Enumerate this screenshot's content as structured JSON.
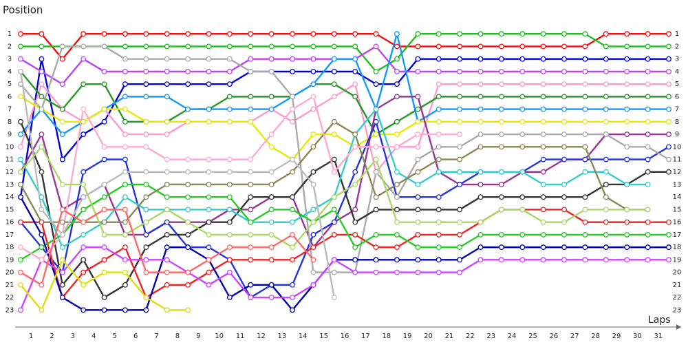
{
  "chart_data": {
    "type": "lap",
    "y_label": "Position",
    "x_label": "Laps",
    "x": [
      0,
      1,
      2,
      3,
      4,
      5,
      6,
      7,
      8,
      9,
      10,
      11,
      12,
      13,
      14,
      15,
      16,
      17,
      18,
      19,
      20,
      21,
      22,
      23,
      24,
      25,
      26,
      27,
      28,
      29,
      30,
      31
    ],
    "xlim": [
      0,
      31
    ],
    "ylim": [
      0,
      24
    ],
    "y_reversed": true,
    "yticks": [
      1,
      2,
      3,
      4,
      5,
      6,
      7,
      8,
      9,
      10,
      11,
      12,
      13,
      14,
      15,
      16,
      17,
      18,
      19,
      20,
      21,
      22,
      23
    ],
    "x_labels": [
      1,
      2,
      3,
      4,
      5,
      6,
      7,
      8,
      9,
      10,
      11,
      12,
      13,
      14,
      15,
      16,
      17,
      18,
      19,
      20,
      21,
      22,
      23,
      24,
      25,
      26,
      27,
      28,
      29,
      30,
      31
    ],
    "series": [
      {
        "color": "#ee1111",
        "values": [
          1,
          1,
          3,
          1,
          1,
          1,
          1,
          1,
          1,
          1,
          1,
          1,
          1,
          1,
          1,
          1,
          1,
          1,
          2,
          2,
          2,
          2,
          2,
          2,
          2,
          2,
          2,
          2,
          1,
          1,
          1,
          1
        ]
      },
      {
        "color": "#22bb22",
        "values": [
          2,
          2,
          2,
          2,
          2,
          2,
          2,
          2,
          2,
          2,
          2,
          2,
          2,
          2,
          2,
          2,
          2,
          4,
          3,
          1,
          1,
          1,
          1,
          1,
          1,
          1,
          1,
          1,
          2,
          2,
          2,
          2
        ]
      },
      {
        "color": "#0000dd",
        "values": [
          14,
          3,
          11,
          9,
          8,
          5,
          5,
          5,
          5,
          5,
          5,
          4,
          4,
          4,
          4,
          4,
          4,
          5,
          5,
          3,
          3,
          3,
          3,
          3,
          3,
          3,
          3,
          3,
          3,
          3,
          3,
          3
        ]
      },
      {
        "color": "#bb44ee",
        "values": [
          3,
          4,
          5,
          3,
          4,
          4,
          4,
          4,
          4,
          4,
          4,
          3,
          3,
          3,
          3,
          3,
          3,
          2,
          4,
          4,
          4,
          4,
          4,
          4,
          4,
          4,
          4,
          4,
          4,
          4,
          4,
          4
        ]
      },
      {
        "color": "#ff99cc",
        "values": [
          10,
          5,
          7,
          8,
          7,
          9,
          9,
          9,
          8,
          8,
          8,
          8,
          7,
          8,
          7,
          6,
          5,
          12,
          10,
          10,
          5,
          5,
          5,
          5,
          5,
          5,
          5,
          5,
          5,
          5,
          5,
          5
        ]
      },
      {
        "color": "#229922",
        "values": [
          4,
          6,
          7,
          5,
          5,
          8,
          8,
          8,
          7,
          7,
          6,
          6,
          6,
          6,
          5,
          5,
          6,
          9,
          8,
          7,
          6,
          6,
          6,
          6,
          6,
          6,
          6,
          6,
          6,
          6,
          6,
          6
        ]
      },
      {
        "color": "#1199ff",
        "values": [
          9,
          7,
          9,
          8,
          7,
          6,
          6,
          6,
          7,
          7,
          7,
          7,
          7,
          6,
          5,
          3,
          3,
          7,
          1,
          8,
          7,
          7,
          7,
          7,
          7,
          7,
          7,
          7,
          7,
          7,
          7,
          7
        ]
      },
      {
        "color": "#e8e800",
        "values": [
          6,
          7,
          8,
          8,
          7,
          7,
          8,
          8,
          8,
          8,
          8,
          8,
          10,
          11,
          9,
          9,
          10,
          9,
          9,
          8,
          8,
          8,
          8,
          8,
          8,
          8,
          8,
          8,
          8,
          8,
          8,
          8
        ]
      },
      {
        "color": "#993399",
        "values": [
          12,
          9,
          15,
          14,
          13,
          17,
          17,
          16,
          16,
          16,
          15,
          15,
          14,
          14,
          18,
          16,
          15,
          7,
          6,
          6,
          12,
          13,
          13,
          13,
          12,
          12,
          11,
          11,
          9,
          9,
          9,
          9
        ]
      },
      {
        "color": "#2233dd",
        "values": [
          16,
          18,
          20,
          12,
          11,
          11,
          17,
          16,
          18,
          18,
          19,
          22,
          21,
          21,
          17,
          16,
          12,
          8,
          14,
          14,
          14,
          13,
          12,
          12,
          12,
          11,
          11,
          11,
          11,
          11,
          11,
          10
        ]
      },
      {
        "color": "#aaaaaa",
        "values": [
          5,
          7,
          2,
          2,
          2,
          3,
          3,
          3,
          3,
          3,
          3,
          4,
          4,
          6,
          20,
          20,
          20,
          12,
          14,
          11,
          10,
          10,
          9,
          9,
          9,
          9,
          9,
          9,
          9,
          10,
          10,
          11
        ]
      },
      {
        "color": "#333333",
        "values": [
          8,
          12,
          21,
          19,
          22,
          21,
          18,
          17,
          17,
          16,
          16,
          14,
          14,
          14,
          12,
          11,
          16,
          15,
          15,
          15,
          15,
          15,
          14,
          14,
          14,
          14,
          14,
          14,
          13,
          13,
          12,
          12
        ]
      },
      {
        "color": "#33cccc",
        "values": [
          11,
          14,
          18,
          17,
          16,
          14,
          15,
          15,
          15,
          15,
          15,
          16,
          16,
          16,
          15,
          14,
          9,
          7,
          12,
          13,
          12,
          12,
          12,
          12,
          12,
          13,
          13,
          12,
          12,
          13,
          13,
          null
        ]
      },
      {
        "color": "#888855",
        "values": [
          13,
          16,
          16,
          16,
          16,
          16,
          14,
          13,
          13,
          13,
          13,
          13,
          13,
          12,
          10,
          8,
          9,
          14,
          13,
          12,
          11,
          11,
          10,
          10,
          10,
          10,
          10,
          10,
          14,
          15,
          15,
          null
        ]
      },
      {
        "color": "#ee2222",
        "values": [
          16,
          16,
          22,
          20,
          19,
          18,
          22,
          21,
          21,
          20,
          19,
          19,
          19,
          19,
          18,
          17,
          17,
          18,
          18,
          17,
          17,
          17,
          16,
          15,
          15,
          15,
          15,
          16,
          16,
          16,
          16,
          16
        ]
      },
      {
        "color": "#22cc22",
        "values": [
          19,
          18,
          17,
          15,
          14,
          13,
          13,
          14,
          14,
          14,
          14,
          16,
          15,
          15,
          16,
          15,
          18,
          17,
          17,
          18,
          18,
          18,
          17,
          17,
          17,
          17,
          17,
          17,
          17,
          17,
          17,
          17
        ]
      },
      {
        "color": "#0000aa",
        "values": [
          14,
          17,
          22,
          23,
          23,
          23,
          23,
          18,
          18,
          19,
          22,
          21,
          21,
          23,
          21,
          19,
          19,
          19,
          19,
          19,
          19,
          19,
          18,
          18,
          18,
          18,
          18,
          18,
          18,
          18,
          18,
          18
        ]
      },
      {
        "color": "#cc44ff",
        "values": [
          23,
          19,
          20,
          18,
          18,
          19,
          19,
          19,
          20,
          21,
          20,
          22,
          22,
          22,
          21,
          19,
          20,
          20,
          20,
          20,
          20,
          20,
          19,
          19,
          19,
          19,
          19,
          19,
          19,
          19,
          19,
          19
        ]
      },
      {
        "color": "#ffaacc",
        "values": [
          18,
          19,
          17,
          7,
          10,
          10,
          10,
          11,
          11,
          11,
          11,
          11,
          9,
          7,
          6,
          12,
          10,
          10,
          10,
          9,
          9,
          9,
          null,
          null,
          null,
          null,
          null,
          null,
          null,
          null,
          null,
          null
        ]
      },
      {
        "color": "#dddd11",
        "values": [
          21,
          23,
          19,
          21,
          20,
          20,
          22,
          23,
          23,
          null,
          null,
          null,
          null,
          null,
          null,
          null,
          null,
          null,
          null,
          null,
          null,
          null,
          null,
          null,
          null,
          null,
          null,
          null,
          null,
          null,
          null,
          null
        ]
      },
      {
        "color": "#aad866",
        "values": [
          12,
          10,
          13,
          13,
          17,
          17,
          16,
          15,
          16,
          17,
          17,
          17,
          17,
          18,
          16,
          14,
          13,
          11,
          16,
          16,
          16,
          16,
          16,
          15,
          15,
          16,
          16,
          15,
          15,
          15,
          15,
          null
        ]
      },
      {
        "color": "#bbbbbb",
        "values": [
          4,
          15,
          17,
          14,
          13,
          12,
          12,
          12,
          12,
          12,
          12,
          12,
          12,
          11,
          13,
          22,
          null,
          null,
          null,
          null,
          null,
          null,
          null,
          null,
          null,
          null,
          null,
          null,
          null,
          null,
          null,
          null
        ]
      },
      {
        "color": "#ff6666",
        "values": [
          20,
          21,
          15,
          16,
          15,
          15,
          20,
          20,
          20,
          19,
          18,
          18,
          18,
          17,
          19,
          null,
          null,
          null,
          null,
          null,
          null,
          null,
          null,
          null,
          null,
          null,
          null,
          null,
          null,
          null,
          null,
          null
        ]
      }
    ]
  }
}
